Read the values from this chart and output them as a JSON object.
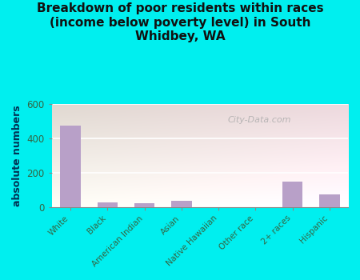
{
  "title": "Breakdown of poor residents within races\n(income below poverty level) in South\nWhidbey, WA",
  "categories": [
    "White",
    "Black",
    "American Indian",
    "Asian",
    "Native Hawaiian",
    "Other race",
    "2+ races",
    "Hispanic"
  ],
  "values": [
    475,
    28,
    20,
    35,
    0,
    0,
    150,
    72
  ],
  "bar_color": "#b8a0c8",
  "ylabel": "absolute numbers",
  "ylim": [
    0,
    600
  ],
  "yticks": [
    0,
    200,
    400,
    600
  ],
  "bg_color_top": "#dff0d0",
  "bg_color_bottom": "#f8fff0",
  "outer_bg": "#00efef",
  "title_fontsize": 11,
  "tick_label_color": "#336644",
  "ylabel_color": "#003355",
  "axis_label_fontsize": 9,
  "watermark": "City-Data.com"
}
